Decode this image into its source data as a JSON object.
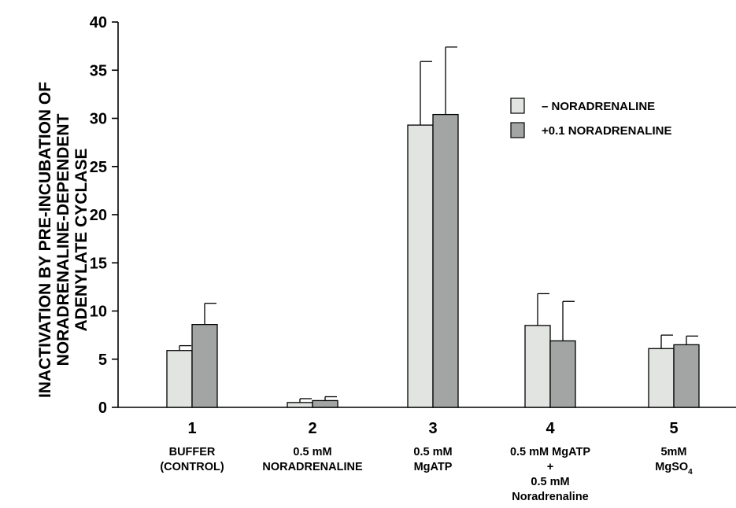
{
  "chart_data": {
    "type": "bar",
    "title": "",
    "ylabel_lines": [
      "INACTIVATION BY PRE-INCUBATION OF",
      "NORADRENALINE-DEPENDENT",
      "ADENYLATE CYCLASE"
    ],
    "xlabel": "",
    "ylim": [
      0,
      40
    ],
    "yticks": [
      0,
      5,
      10,
      15,
      20,
      25,
      30,
      35,
      40
    ],
    "grid": false,
    "legend_position": "top-right",
    "categories": [
      {
        "number": "1",
        "lines": [
          {
            "text": "BUFFER"
          },
          {
            "text": "(CONTROL)"
          }
        ]
      },
      {
        "number": "2",
        "lines": [
          {
            "text": "0.5 mM"
          },
          {
            "text": "NORADRENALINE"
          }
        ]
      },
      {
        "number": "3",
        "lines": [
          {
            "text": "0.5 mM"
          },
          {
            "text": "MgATP"
          }
        ]
      },
      {
        "number": "4",
        "lines": [
          {
            "text": "0.5 mM MgATP"
          },
          {
            "text": "+"
          },
          {
            "text": "0.5 mM"
          },
          {
            "text": "Noradrenaline"
          }
        ]
      },
      {
        "number": "5",
        "lines": [
          {
            "text": "5mM"
          },
          {
            "text": "MgSO",
            "sub": "4"
          }
        ]
      }
    ],
    "series": [
      {
        "name": "–  NORADRENALINE",
        "color": "#e2e4e1",
        "values": [
          5.9,
          0.5,
          29.3,
          8.5,
          6.1
        ],
        "errors": [
          0.5,
          0.4,
          6.6,
          3.3,
          1.4
        ]
      },
      {
        "name": "+0.1 NORADRENALINE",
        "color": "#a3a5a4",
        "values": [
          8.6,
          0.7,
          30.4,
          6.9,
          6.5
        ],
        "errors": [
          2.2,
          0.4,
          7.0,
          4.1,
          0.9
        ]
      }
    ]
  }
}
